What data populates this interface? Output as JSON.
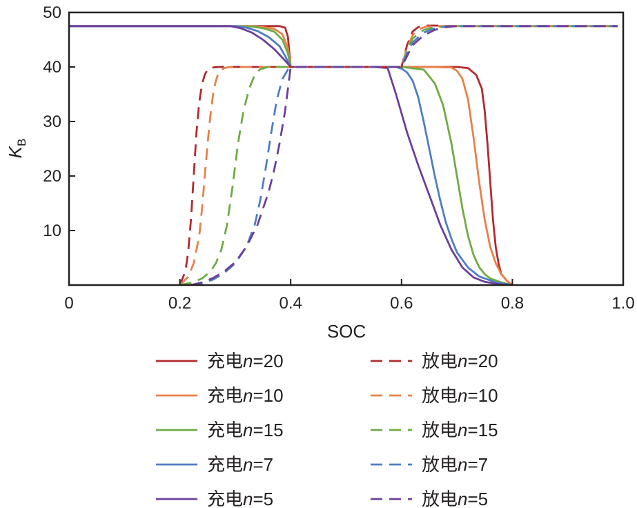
{
  "chart_data": {
    "type": "line",
    "xlabel": "SOC",
    "ylabel_main": "K",
    "ylabel_sub": "B",
    "xlim": [
      0,
      1.0
    ],
    "ylim": [
      0,
      50
    ],
    "x_ticks": [
      0,
      0.2,
      0.4,
      0.6,
      0.8,
      1.0
    ],
    "x_tick_labels": [
      "0",
      "0.2",
      "0.4",
      "0.6",
      "0.8",
      "1.0"
    ],
    "y_ticks": [
      10,
      20,
      30,
      40,
      50
    ],
    "y_tick_labels": [
      "10",
      "20",
      "30",
      "40",
      "50"
    ],
    "grid": false,
    "legend_position": "bottom",
    "series": [
      {
        "label_prefix": "充电",
        "label_var": "n",
        "label_eq": "=20",
        "color": "#b22a2e",
        "style": "solid",
        "x": [
          0,
          0.32,
          0.34,
          0.36,
          0.38,
          0.39,
          0.395,
          0.4,
          0.45,
          0.5,
          0.55,
          0.6,
          0.65,
          0.7,
          0.72,
          0.735,
          0.745,
          0.75,
          0.755,
          0.76,
          0.765,
          0.77,
          0.775,
          0.78,
          0.79,
          0.8
        ],
        "y": [
          47.5,
          47.5,
          47.5,
          47.5,
          47.5,
          47.2,
          45.5,
          40,
          40,
          40,
          40,
          40,
          40,
          40,
          39.8,
          38.5,
          36,
          32,
          26,
          19,
          12,
          7,
          4,
          2,
          0.8,
          0
        ]
      },
      {
        "label_prefix": "充电",
        "label_var": "n",
        "label_eq": "=10",
        "color": "#e8804a",
        "style": "solid",
        "x": [
          0,
          0.31,
          0.33,
          0.35,
          0.37,
          0.385,
          0.395,
          0.4,
          0.45,
          0.5,
          0.55,
          0.6,
          0.65,
          0.69,
          0.7,
          0.71,
          0.72,
          0.73,
          0.74,
          0.75,
          0.76,
          0.77,
          0.78,
          0.79,
          0.8
        ],
        "y": [
          47.5,
          47.5,
          47.5,
          47.3,
          47,
          46,
          43.5,
          40,
          40,
          40,
          40,
          40,
          40,
          39.9,
          39.3,
          37.8,
          34,
          27,
          19,
          12,
          7,
          4,
          2,
          0.8,
          0
        ]
      },
      {
        "label_prefix": "充电",
        "label_var": "n",
        "label_eq": "=15",
        "color": "#6fab45",
        "style": "solid",
        "x": [
          0,
          0.31,
          0.33,
          0.35,
          0.37,
          0.385,
          0.395,
          0.4,
          0.45,
          0.5,
          0.55,
          0.6,
          0.64,
          0.66,
          0.675,
          0.69,
          0.7,
          0.71,
          0.72,
          0.73,
          0.74,
          0.75,
          0.76,
          0.78,
          0.8
        ],
        "y": [
          47.5,
          47.5,
          47.4,
          47.1,
          46.5,
          45,
          42.5,
          40,
          40,
          40,
          40,
          40,
          39.5,
          37,
          33,
          26,
          20,
          14,
          9,
          5.5,
          3.3,
          2,
          1.2,
          0.5,
          0
        ]
      },
      {
        "label_prefix": "充电",
        "label_var": "n",
        "label_eq": "=7",
        "color": "#4f7ec0",
        "style": "solid",
        "x": [
          0,
          0.3,
          0.32,
          0.34,
          0.36,
          0.38,
          0.39,
          0.4,
          0.45,
          0.5,
          0.55,
          0.59,
          0.6,
          0.61,
          0.62,
          0.63,
          0.64,
          0.65,
          0.66,
          0.67,
          0.68,
          0.69,
          0.7,
          0.72,
          0.74,
          0.77,
          0.8
        ],
        "y": [
          47.5,
          47.5,
          47.2,
          46.6,
          45.5,
          43.8,
          42,
          40,
          40,
          40,
          40,
          40,
          39.7,
          39,
          37.5,
          34.5,
          30,
          25,
          20,
          15.5,
          11.5,
          8.5,
          6,
          3.2,
          1.6,
          0.5,
          0
        ]
      },
      {
        "label_prefix": "充电",
        "label_var": "n",
        "label_eq": "=5",
        "color": "#6c3f9b",
        "style": "solid",
        "x": [
          0,
          0.29,
          0.31,
          0.33,
          0.35,
          0.37,
          0.385,
          0.4,
          0.45,
          0.5,
          0.55,
          0.575,
          0.59,
          0.61,
          0.63,
          0.65,
          0.67,
          0.69,
          0.71,
          0.73,
          0.75,
          0.78,
          0.8
        ],
        "y": [
          47.5,
          47.5,
          47.1,
          46.3,
          45,
          43.3,
          41.7,
          40,
          40,
          40,
          40,
          39.8,
          35,
          28,
          22,
          16.5,
          11,
          6.5,
          3.2,
          1.4,
          0.6,
          0.1,
          0
        ]
      },
      {
        "label_prefix": "放电",
        "label_var": "n",
        "label_eq": "=20",
        "color": "#b22a2e",
        "style": "dashed",
        "x": [
          0.2,
          0.21,
          0.215,
          0.22,
          0.225,
          0.23,
          0.235,
          0.24,
          0.245,
          0.25,
          0.26,
          0.27,
          0.28,
          0.3,
          0.4,
          0.6,
          0.61,
          0.62,
          0.63,
          0.64,
          0.66,
          0.7,
          0.99
        ],
        "y": [
          0,
          2.5,
          6,
          12,
          20,
          28,
          33.5,
          36.8,
          38.6,
          39.5,
          39.9,
          40,
          40,
          40,
          40,
          40,
          44,
          46.5,
          47.3,
          47.6,
          47.6,
          47.5,
          47.5
        ]
      },
      {
        "label_prefix": "放电",
        "label_var": "n",
        "label_eq": "=10",
        "color": "#e8804a",
        "style": "dashed",
        "x": [
          0.2,
          0.215,
          0.225,
          0.235,
          0.24,
          0.245,
          0.25,
          0.255,
          0.26,
          0.265,
          0.27,
          0.28,
          0.29,
          0.3,
          0.4,
          0.6,
          0.61,
          0.62,
          0.63,
          0.645,
          0.66,
          0.7,
          0.99
        ],
        "y": [
          0,
          1.5,
          4,
          9,
          14,
          20,
          26,
          31,
          35,
          37.5,
          39,
          39.8,
          40,
          40,
          40,
          40,
          43.5,
          45.8,
          46.9,
          47.4,
          47.5,
          47.5,
          47.5
        ]
      },
      {
        "label_prefix": "放电",
        "label_var": "n",
        "label_eq": "=15",
        "color": "#6fab45",
        "style": "dashed",
        "x": [
          0.2,
          0.22,
          0.24,
          0.255,
          0.265,
          0.275,
          0.285,
          0.295,
          0.305,
          0.315,
          0.325,
          0.335,
          0.345,
          0.36,
          0.4,
          0.6,
          0.61,
          0.62,
          0.64,
          0.66,
          0.7,
          0.99
        ],
        "y": [
          0,
          0.4,
          1.2,
          2.5,
          4,
          6.5,
          11,
          18,
          26,
          32,
          36,
          38.5,
          39.6,
          40,
          40,
          40,
          43,
          45.2,
          46.8,
          47.3,
          47.5,
          47.5
        ]
      },
      {
        "label_prefix": "放电",
        "label_var": "n",
        "label_eq": "=7",
        "color": "#4f7ec0",
        "style": "dashed",
        "x": [
          0.22,
          0.24,
          0.26,
          0.28,
          0.3,
          0.32,
          0.335,
          0.345,
          0.355,
          0.365,
          0.375,
          0.385,
          0.395,
          0.4,
          0.6,
          0.61,
          0.62,
          0.64,
          0.66,
          0.68,
          0.7,
          0.99
        ],
        "y": [
          0,
          0.3,
          1,
          2.2,
          4,
          7,
          11,
          15.5,
          21.5,
          28,
          34,
          37.8,
          39.5,
          40,
          40,
          42.5,
          44.5,
          46.3,
          47.1,
          47.4,
          47.5,
          47.5
        ]
      },
      {
        "label_prefix": "放电",
        "label_var": "n",
        "label_eq": "=5",
        "color": "#6c3f9b",
        "style": "dashed",
        "x": [
          0.22,
          0.24,
          0.26,
          0.28,
          0.3,
          0.32,
          0.34,
          0.36,
          0.37,
          0.38,
          0.39,
          0.395,
          0.4,
          0.6,
          0.61,
          0.62,
          0.64,
          0.66,
          0.68,
          0.7,
          0.99
        ],
        "y": [
          0,
          0.5,
          1.3,
          2.5,
          4.2,
          7,
          11,
          17,
          21,
          26,
          32,
          36,
          40,
          40,
          42,
          44,
          45.8,
          46.8,
          47.3,
          47.5,
          47.5
        ]
      }
    ]
  }
}
